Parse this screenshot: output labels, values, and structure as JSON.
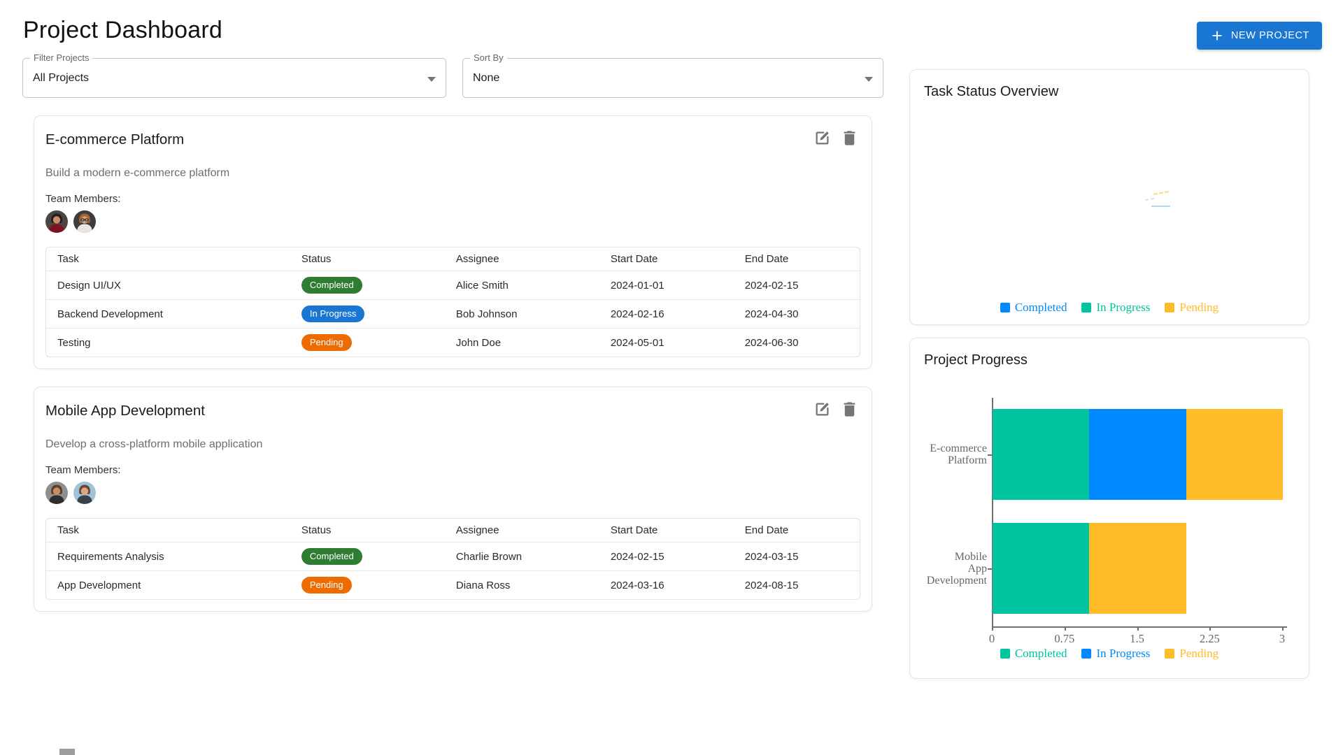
{
  "page_title": "Project Dashboard",
  "header": {
    "new_project": "NEW PROJECT",
    "accent": "#1976d2"
  },
  "filters": {
    "filter_projects": {
      "label": "Filter Projects",
      "value": "All Projects"
    },
    "sort_by": {
      "label": "Sort By",
      "value": "None"
    }
  },
  "table_headers": [
    "Task",
    "Status",
    "Assignee",
    "Start Date",
    "End Date"
  ],
  "status_colors": {
    "Completed": "#2e7d32",
    "In Progress": "#1976d2",
    "Pending": "#ed6c02"
  },
  "projects": [
    {
      "name": "E-commerce Platform",
      "description": "Build a modern e-commerce platform",
      "team_label": "Team Members:",
      "members": [
        {
          "bg": "#4a4642",
          "hair": "#241f1e",
          "skin": "#c98d6b",
          "shirt": "#7e1326",
          "glasses": false
        },
        {
          "bg": "#3d3d3f",
          "hair": "#a8642c",
          "skin": "#caa07e",
          "shirt": "#e9e6e1",
          "glasses": true
        }
      ],
      "tasks": [
        {
          "task": "Design UI/UX",
          "status": "Completed",
          "assignee": "Alice Smith",
          "start": "2024-01-01",
          "end": "2024-02-15"
        },
        {
          "task": "Backend Development",
          "status": "In Progress",
          "assignee": "Bob Johnson",
          "start": "2024-02-16",
          "end": "2024-04-30"
        },
        {
          "task": "Testing",
          "status": "Pending",
          "assignee": "John Doe",
          "start": "2024-05-01",
          "end": "2024-06-30"
        }
      ]
    },
    {
      "name": "Mobile App Development",
      "description": "Develop a cross-platform mobile application",
      "team_label": "Team Members:",
      "members": [
        {
          "bg": "#8f8f8f",
          "hair": "#5d4030",
          "skin": "#c78e66",
          "shirt": "#2e2e30",
          "glasses": false
        },
        {
          "bg": "#9fc3d4",
          "hair": "#6e4632",
          "skin": "#d9a986",
          "shirt": "#37424a",
          "glasses": false
        }
      ],
      "tasks": [
        {
          "task": "Requirements Analysis",
          "status": "Completed",
          "assignee": "Charlie Brown",
          "start": "2024-02-15",
          "end": "2024-03-15"
        },
        {
          "task": "App Development",
          "status": "Pending",
          "assignee": "Diana Ross",
          "start": "2024-03-16",
          "end": "2024-08-15"
        }
      ]
    }
  ],
  "charts": {
    "pie": {
      "title": "Task Status Overview",
      "legend": [
        {
          "label": "Completed",
          "color": "#0088FE"
        },
        {
          "label": "In Progress",
          "color": "#00C49F"
        },
        {
          "label": "Pending",
          "color": "#FFBB28"
        }
      ]
    },
    "bar": {
      "title": "Project Progress"
    }
  },
  "chart_data": [
    {
      "type": "pie",
      "title": "Task Status Overview",
      "categories": [
        "Completed",
        "In Progress",
        "Pending"
      ],
      "colors": [
        "#0088FE",
        "#00C49F",
        "#FFBB28"
      ],
      "values": [
        0,
        0,
        0
      ],
      "note": "pie rendered collapsed to a tiny artifact in center; only legend visible",
      "legend_position": "bottom"
    },
    {
      "type": "bar",
      "orientation": "horizontal",
      "stacked": true,
      "title": "Project Progress",
      "categories": [
        "E-commerce Platform",
        "Mobile App Development"
      ],
      "category_lines": [
        [
          "E-commerce",
          "Platform"
        ],
        [
          "Mobile",
          "App",
          "Development"
        ]
      ],
      "series": [
        {
          "name": "Completed",
          "color": "#00C49F",
          "values": [
            1,
            1
          ]
        },
        {
          "name": "In Progress",
          "color": "#0088FE",
          "values": [
            1,
            0
          ]
        },
        {
          "name": "Pending",
          "color": "#FFBB28",
          "values": [
            1,
            1
          ]
        }
      ],
      "xlim": [
        0,
        3
      ],
      "xticks": [
        0,
        0.75,
        1.5,
        2.25,
        3
      ],
      "legend_position": "bottom",
      "grid": false
    }
  ]
}
